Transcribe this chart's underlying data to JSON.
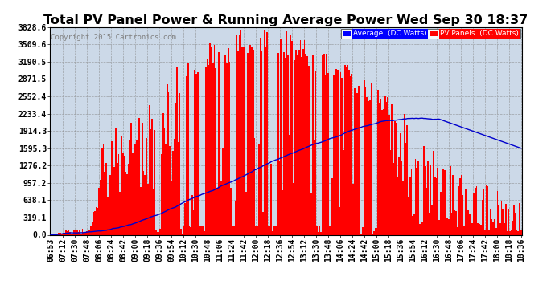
{
  "title": "Total PV Panel Power & Running Average Power Wed Sep 30 18:37",
  "copyright": "Copyright 2015 Cartronics.com",
  "legend_avg": "Average  (DC Watts)",
  "legend_pv": "PV Panels  (DC Watts)",
  "yticks": [
    0.0,
    319.1,
    638.1,
    957.2,
    1276.2,
    1595.3,
    1914.3,
    2233.4,
    2552.4,
    2871.5,
    3190.5,
    3509.6,
    3828.6
  ],
  "ymax": 3828.6,
  "ymin": 0.0,
  "bg_color": "#ffffff",
  "plot_bg_color": "#ccd9e8",
  "bar_color": "#ff0000",
  "avg_color": "#0000cc",
  "grid_color": "#888888",
  "title_fontsize": 11.5,
  "tick_fontsize": 7,
  "xtick_labels": [
    "06:53",
    "07:12",
    "07:30",
    "07:48",
    "08:06",
    "08:24",
    "08:42",
    "09:00",
    "09:18",
    "09:36",
    "09:54",
    "10:12",
    "10:30",
    "10:48",
    "11:06",
    "11:24",
    "11:42",
    "12:00",
    "12:18",
    "12:36",
    "12:54",
    "13:12",
    "13:30",
    "13:48",
    "14:06",
    "14:24",
    "14:42",
    "15:00",
    "15:18",
    "15:36",
    "15:54",
    "16:12",
    "16:30",
    "16:48",
    "17:06",
    "17:24",
    "17:42",
    "18:00",
    "18:18",
    "18:36"
  ]
}
